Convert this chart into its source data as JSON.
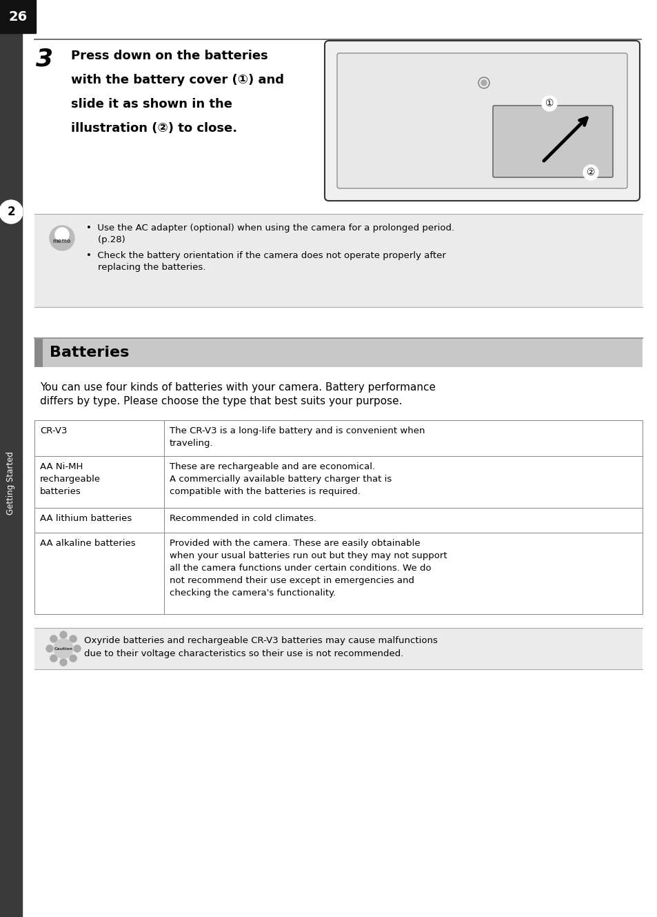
{
  "page_number": "26",
  "step_number": "3",
  "step_text_lines": [
    "Press down on the batteries",
    "with the battery cover (①) and",
    "slide it as shown in the",
    "illustration (②) to close."
  ],
  "sidebar_label": "Getting Started",
  "sidebar_number": "2",
  "memo_bullet1_line1": "•  Use the AC adapter (optional) when using the camera for a prolonged period.",
  "memo_bullet1_line2": "    (p.28)",
  "memo_bullet2_line1": "•  Check the battery orientation if the camera does not operate properly after",
  "memo_bullet2_line2": "    replacing the batteries.",
  "section_title": "Batteries",
  "intro_line1": "You can use four kinds of batteries with your camera. Battery performance",
  "intro_line2": "differs by type. Please choose the type that best suits your purpose.",
  "table_col1": [
    "CR-V3",
    "AA Ni-MH\nrechargeable\nbatteries",
    "AA lithium batteries",
    "AA alkaline batteries"
  ],
  "table_col2": [
    "The CR-V3 is a long-life battery and is convenient when\ntraveling.",
    "These are rechargeable and are economical.\nA commercially available battery charger that is\ncompatible with the batteries is required.",
    "Recommended in cold climates.",
    "Provided with the camera. These are easily obtainable\nwhen your usual batteries run out but they may not support\nall the camera functions under certain conditions. We do\nnot recommend their use except in emergencies and\nchecking the camera's functionality."
  ],
  "caution_line1": "Oxyride batteries and rechargeable CR-V3 batteries may cause malfunctions",
  "caution_line2": "due to their voltage characteristics so their use is not recommended.",
  "bg_color": "#ffffff",
  "sidebar_bg": "#3a3a3a",
  "page_num_bg": "#111111",
  "memo_bg": "#ebebeb",
  "caution_bg": "#ebebeb",
  "section_header_bg": "#c8c8c8",
  "section_bar_color": "#888888",
  "table_border": "#888888",
  "text_color": "#000000"
}
